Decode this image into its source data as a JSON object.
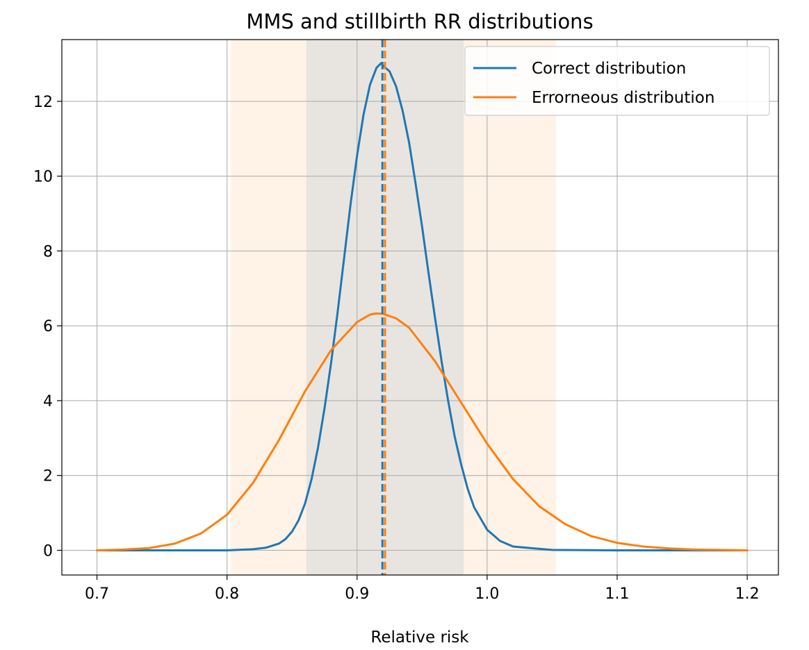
{
  "chart_data": {
    "type": "line",
    "title": "MMS and stillbirth RR distributions",
    "xlabel": "Relative risk",
    "ylabel": "",
    "xlim": [
      0.673,
      1.224
    ],
    "ylim": [
      -0.66,
      13.65
    ],
    "xticks": [
      0.7,
      0.8,
      0.9,
      1.0,
      1.1,
      1.2
    ],
    "xtick_labels": [
      "0.7",
      "0.8",
      "0.9",
      "1.0",
      "1.1",
      "1.2"
    ],
    "yticks": [
      0,
      2,
      4,
      6,
      8,
      10,
      12
    ],
    "ytick_labels": [
      "0",
      "2",
      "4",
      "6",
      "8",
      "10",
      "12"
    ],
    "grid": true,
    "legend_position": "top-right",
    "series": [
      {
        "name": "Correct distribution",
        "color": "#1f77b4",
        "x": [
          0.7,
          0.76,
          0.8,
          0.82,
          0.83,
          0.84,
          0.845,
          0.85,
          0.855,
          0.86,
          0.865,
          0.87,
          0.875,
          0.88,
          0.885,
          0.89,
          0.895,
          0.9,
          0.905,
          0.91,
          0.915,
          0.9185,
          0.92,
          0.925,
          0.93,
          0.935,
          0.94,
          0.945,
          0.95,
          0.955,
          0.96,
          0.965,
          0.97,
          0.975,
          0.98,
          0.985,
          0.99,
          1.0,
          1.01,
          1.02,
          1.05,
          1.1,
          1.2
        ],
        "y": [
          0.0,
          0.0,
          0.0,
          0.03,
          0.07,
          0.18,
          0.3,
          0.5,
          0.8,
          1.25,
          1.9,
          2.75,
          3.8,
          5.0,
          6.35,
          7.8,
          9.25,
          10.55,
          11.65,
          12.45,
          12.9,
          13.02,
          12.95,
          12.8,
          12.4,
          11.75,
          10.9,
          9.8,
          8.65,
          7.4,
          6.2,
          5.05,
          4.0,
          3.05,
          2.3,
          1.65,
          1.15,
          0.55,
          0.25,
          0.1,
          0.01,
          0.0,
          0.0
        ]
      },
      {
        "name": "Errorneous distribution",
        "color": "#ff7f0e",
        "x": [
          0.7,
          0.72,
          0.74,
          0.76,
          0.78,
          0.8,
          0.82,
          0.84,
          0.86,
          0.88,
          0.9,
          0.91,
          0.915,
          0.92,
          0.93,
          0.94,
          0.96,
          0.98,
          1.0,
          1.02,
          1.04,
          1.06,
          1.08,
          1.1,
          1.12,
          1.14,
          1.16,
          1.18,
          1.2
        ],
        "y": [
          0.0,
          0.02,
          0.06,
          0.18,
          0.45,
          0.95,
          1.8,
          2.95,
          4.25,
          5.35,
          6.1,
          6.3,
          6.33,
          6.32,
          6.2,
          5.95,
          5.05,
          3.95,
          2.85,
          1.9,
          1.18,
          0.7,
          0.38,
          0.2,
          0.1,
          0.05,
          0.02,
          0.01,
          0.0
        ]
      }
    ],
    "vertical_lines": [
      {
        "x": 0.9195,
        "color": "#1f77b4",
        "style": "dashed"
      },
      {
        "x": 0.9215,
        "color": "#ff7f0e",
        "style": "dashed"
      }
    ],
    "shaded_regions": [
      {
        "x0": 0.803,
        "x1": 1.053,
        "color": "#ff7f0e",
        "alpha": 0.1
      },
      {
        "x0": 0.861,
        "x1": 0.982,
        "color": "#1f77b4",
        "alpha": 0.1
      }
    ]
  }
}
